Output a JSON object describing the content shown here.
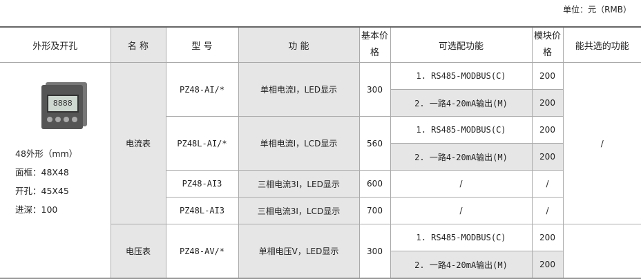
{
  "unit": "单位：元（RMB）",
  "headers": {
    "shape": "外形及开孔",
    "name": "名 称",
    "model": "型  号",
    "function": "功  能",
    "base_price": "基本价格",
    "optional": "可选配功能",
    "module_price": "模块价格",
    "combinable": "能共选的功能"
  },
  "spec": {
    "size": "48外形（mm）",
    "frame": "面框：48X48",
    "cutout": "开孔：45X45",
    "depth": "进深：100",
    "lcd": "8888"
  },
  "groups": [
    {
      "name": "电流表"
    },
    {
      "name": "电压表"
    }
  ],
  "rows": [
    {
      "model": "PZ48-AI/*",
      "function": "单相电流I，LED显示",
      "price": "300",
      "options": [
        {
          "label": "1. RS485-MODBUS(C)",
          "price": "200"
        },
        {
          "label": "2. 一路4-20mA输出(M)",
          "price": "200"
        }
      ]
    },
    {
      "model": "PZ48L-AI/*",
      "function": "单相电流I，LCD显示",
      "price": "560",
      "options": [
        {
          "label": "1. RS485-MODBUS(C)",
          "price": "200"
        },
        {
          "label": "2. 一路4-20mA输出(M)",
          "price": "200"
        }
      ]
    },
    {
      "model": "PZ48-AI3",
      "function": "三相电流3I，LED显示",
      "price": "600",
      "options": [
        {
          "label": "/",
          "price": "/"
        }
      ]
    },
    {
      "model": "PZ48L-AI3",
      "function": "三相电流3I，LCD显示",
      "price": "700",
      "options": [
        {
          "label": "/",
          "price": "/"
        }
      ]
    },
    {
      "model": "PZ48-AV/*",
      "function": "单相电压V，LED显示",
      "price": "300",
      "options": [
        {
          "label": "1. RS485-MODBUS(C)",
          "price": "200"
        },
        {
          "label": "2. 一路4-20mA输出(M)",
          "price": "200"
        }
      ]
    }
  ],
  "combinable": "/"
}
